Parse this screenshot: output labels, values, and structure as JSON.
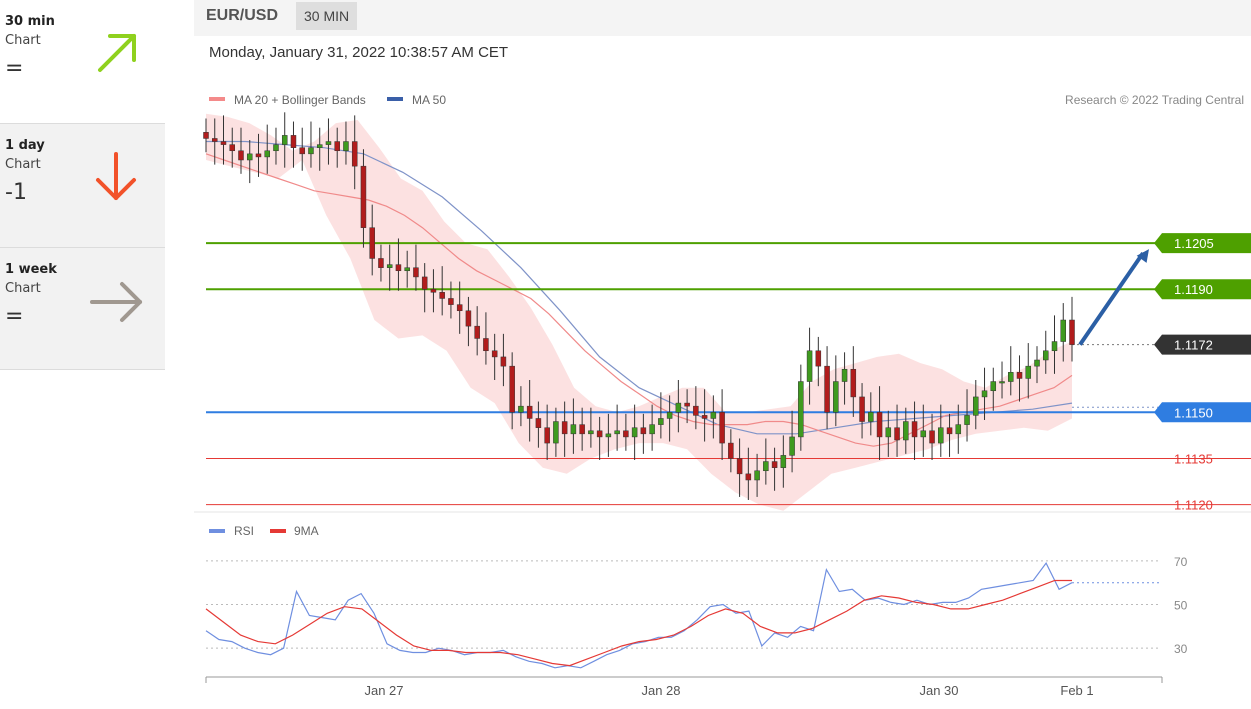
{
  "sidebar": {
    "items": [
      {
        "period": "30 min",
        "type": "Chart",
        "score": "=",
        "icon": "arrow-up-right-icon",
        "color": "#8fd11e"
      },
      {
        "period": "1 day",
        "type": "Chart",
        "score": "-1",
        "icon": "arrow-down-icon",
        "color": "#f2522a"
      },
      {
        "period": "1 week",
        "type": "Chart",
        "score": "=",
        "icon": "arrow-right-icon",
        "color": "#a09890"
      }
    ]
  },
  "header": {
    "symbol": "EUR/USD",
    "timeframe": "30 MIN",
    "datetime": "Monday, January 31, 2022 10:38:57 AM CET"
  },
  "legend": {
    "ma20": "MA 20 + Bollinger Bands",
    "ma50": "MA 50",
    "copyright": "Research © 2022 Trading Central",
    "rsi": "RSI",
    "rsi_ma": "9MA"
  },
  "chart_data": [
    {
      "type": "candlestick",
      "ylim": [
        1.1115,
        1.1245
      ],
      "levels": [
        {
          "value": 1.1205,
          "label": "1.1205",
          "kind": "resistance",
          "color": "#4ea000"
        },
        {
          "value": 1.119,
          "label": "1.1190",
          "kind": "resistance",
          "color": "#4ea000"
        },
        {
          "value": 1.1172,
          "label": "1.1172",
          "kind": "last",
          "color": "#333333"
        },
        {
          "value": 1.115,
          "label": "1.1150",
          "kind": "pivot",
          "color": "#2f7de1"
        },
        {
          "value": 1.1135,
          "label": "1.1135",
          "kind": "support",
          "color": "#e53935"
        },
        {
          "value": 1.112,
          "label": "1.1120",
          "kind": "support",
          "color": "#e53935"
        }
      ],
      "close_path": [
        1.1239,
        1.1238,
        1.1237,
        1.1235,
        1.1232,
        1.1234,
        1.1233,
        1.1235,
        1.1237,
        1.124,
        1.1236,
        1.1234,
        1.1236,
        1.1237,
        1.1238,
        1.1235,
        1.1238,
        1.123,
        1.121,
        1.12,
        1.1197,
        1.1198,
        1.1196,
        1.1197,
        1.1194,
        1.119,
        1.1189,
        1.1187,
        1.1185,
        1.1183,
        1.1178,
        1.1174,
        1.117,
        1.1168,
        1.1165,
        1.115,
        1.1152,
        1.1148,
        1.1145,
        1.114,
        1.1147,
        1.1143,
        1.1146,
        1.1143,
        1.1144,
        1.1142,
        1.1143,
        1.1144,
        1.1142,
        1.1145,
        1.1143,
        1.1146,
        1.1148,
        1.115,
        1.1153,
        1.1152,
        1.1149,
        1.1148,
        1.115,
        1.114,
        1.1135,
        1.113,
        1.1128,
        1.1131,
        1.1134,
        1.1132,
        1.1136,
        1.1142,
        1.116,
        1.117,
        1.1165,
        1.115,
        1.116,
        1.1164,
        1.1155,
        1.1147,
        1.115,
        1.1142,
        1.1145,
        1.1141,
        1.1147,
        1.1142,
        1.1144,
        1.114,
        1.1145,
        1.1143,
        1.1146,
        1.1149,
        1.1155,
        1.1157,
        1.116,
        1.116,
        1.1163,
        1.1161,
        1.1165,
        1.1167,
        1.117,
        1.1173,
        1.118,
        1.1172
      ],
      "ma20": [
        1.1234,
        1.1232,
        1.123,
        1.1228,
        1.1226,
        1.1224,
        1.1222,
        1.1221,
        1.122,
        1.1219,
        1.1217,
        1.1214,
        1.121,
        1.1205,
        1.12,
        1.1196,
        1.1193,
        1.119,
        1.1187,
        1.1182,
        1.1176,
        1.117,
        1.1165,
        1.116,
        1.1156,
        1.1152,
        1.1149,
        1.1147,
        1.1146,
        1.1146,
        1.1146,
        1.1147,
        1.1147,
        1.1146,
        1.1144,
        1.1142,
        1.114,
        1.1139,
        1.114,
        1.1143,
        1.1146,
        1.1149,
        1.115,
        1.1151,
        1.1152,
        1.1154,
        1.1156,
        1.1158,
        1.1162
      ],
      "upper_band": [
        1.1247,
        1.1246,
        1.1244,
        1.124,
        1.1235,
        1.1238,
        1.1244,
        1.1245,
        1.1236,
        1.1226,
        1.1222,
        1.1212,
        1.1205,
        1.1203,
        1.1194,
        1.1184,
        1.1172,
        1.1158,
        1.1152,
        1.115,
        1.1152,
        1.1155,
        1.1158,
        1.1158,
        1.115,
        1.115,
        1.1151,
        1.1152,
        1.116,
        1.1164,
        1.1166,
        1.1168,
        1.1169,
        1.1166,
        1.1164,
        1.116,
        1.1158,
        1.1162,
        1.1165,
        1.117,
        1.1173
      ],
      "lower_band": [
        1.1232,
        1.123,
        1.1228,
        1.1226,
        1.1232,
        1.1214,
        1.12,
        1.118,
        1.1174,
        1.1175,
        1.117,
        1.1158,
        1.1153,
        1.114,
        1.1132,
        1.113,
        1.1135,
        1.1138,
        1.114,
        1.114,
        1.1138,
        1.113,
        1.1124,
        1.112,
        1.1118,
        1.1124,
        1.113,
        1.1132,
        1.1134,
        1.1136,
        1.1138,
        1.1141,
        1.1143,
        1.1144,
        1.1145,
        1.1144,
        1.1148
      ],
      "ma50": [
        1.1238,
        1.1238,
        1.1237,
        1.1236,
        1.1234,
        1.1228,
        1.122,
        1.1209,
        1.1197,
        1.1183,
        1.1168,
        1.1158,
        1.1152,
        1.1146,
        1.1143,
        1.1143,
        1.1145,
        1.1147,
        1.1148,
        1.1149,
        1.115,
        1.1151,
        1.1153
      ],
      "target": {
        "from": 1.1172,
        "to": 1.1205
      }
    },
    {
      "type": "line",
      "ylim": [
        20,
        75
      ],
      "y_ticks": [
        30,
        50,
        70
      ],
      "series": [
        {
          "name": "RSI",
          "color": "#6f8fe0",
          "values": [
            38,
            34,
            33,
            30,
            28,
            27,
            30,
            56,
            45,
            44,
            43,
            52,
            55,
            46,
            32,
            29,
            28,
            28,
            30,
            29,
            27,
            28,
            28,
            29,
            26,
            24,
            23,
            21,
            22,
            21,
            24,
            27,
            29,
            32,
            33,
            35,
            35,
            38,
            43,
            49,
            50,
            46,
            47,
            31,
            37,
            35,
            40,
            38,
            66,
            56,
            57,
            52,
            53,
            51,
            50,
            52,
            50,
            51,
            51,
            53,
            57,
            58,
            59,
            60,
            61,
            69,
            57,
            60
          ]
        },
        {
          "name": "9MA",
          "color": "#e53935",
          "values": [
            48,
            42,
            36,
            33,
            32,
            36,
            41,
            46,
            49,
            48,
            42,
            36,
            31,
            29,
            29,
            28,
            28,
            28,
            27,
            25,
            23,
            22,
            25,
            28,
            31,
            33,
            34,
            36,
            40,
            45,
            48,
            46,
            40,
            37,
            37,
            39,
            43,
            47,
            52,
            54,
            53,
            51,
            50,
            48,
            48,
            50,
            52,
            55,
            58,
            61,
            61
          ]
        }
      ]
    }
  ],
  "x_axis": {
    "ticks": [
      "Jan 27",
      "Jan 28",
      "Jan 30",
      "Feb 1"
    ]
  }
}
